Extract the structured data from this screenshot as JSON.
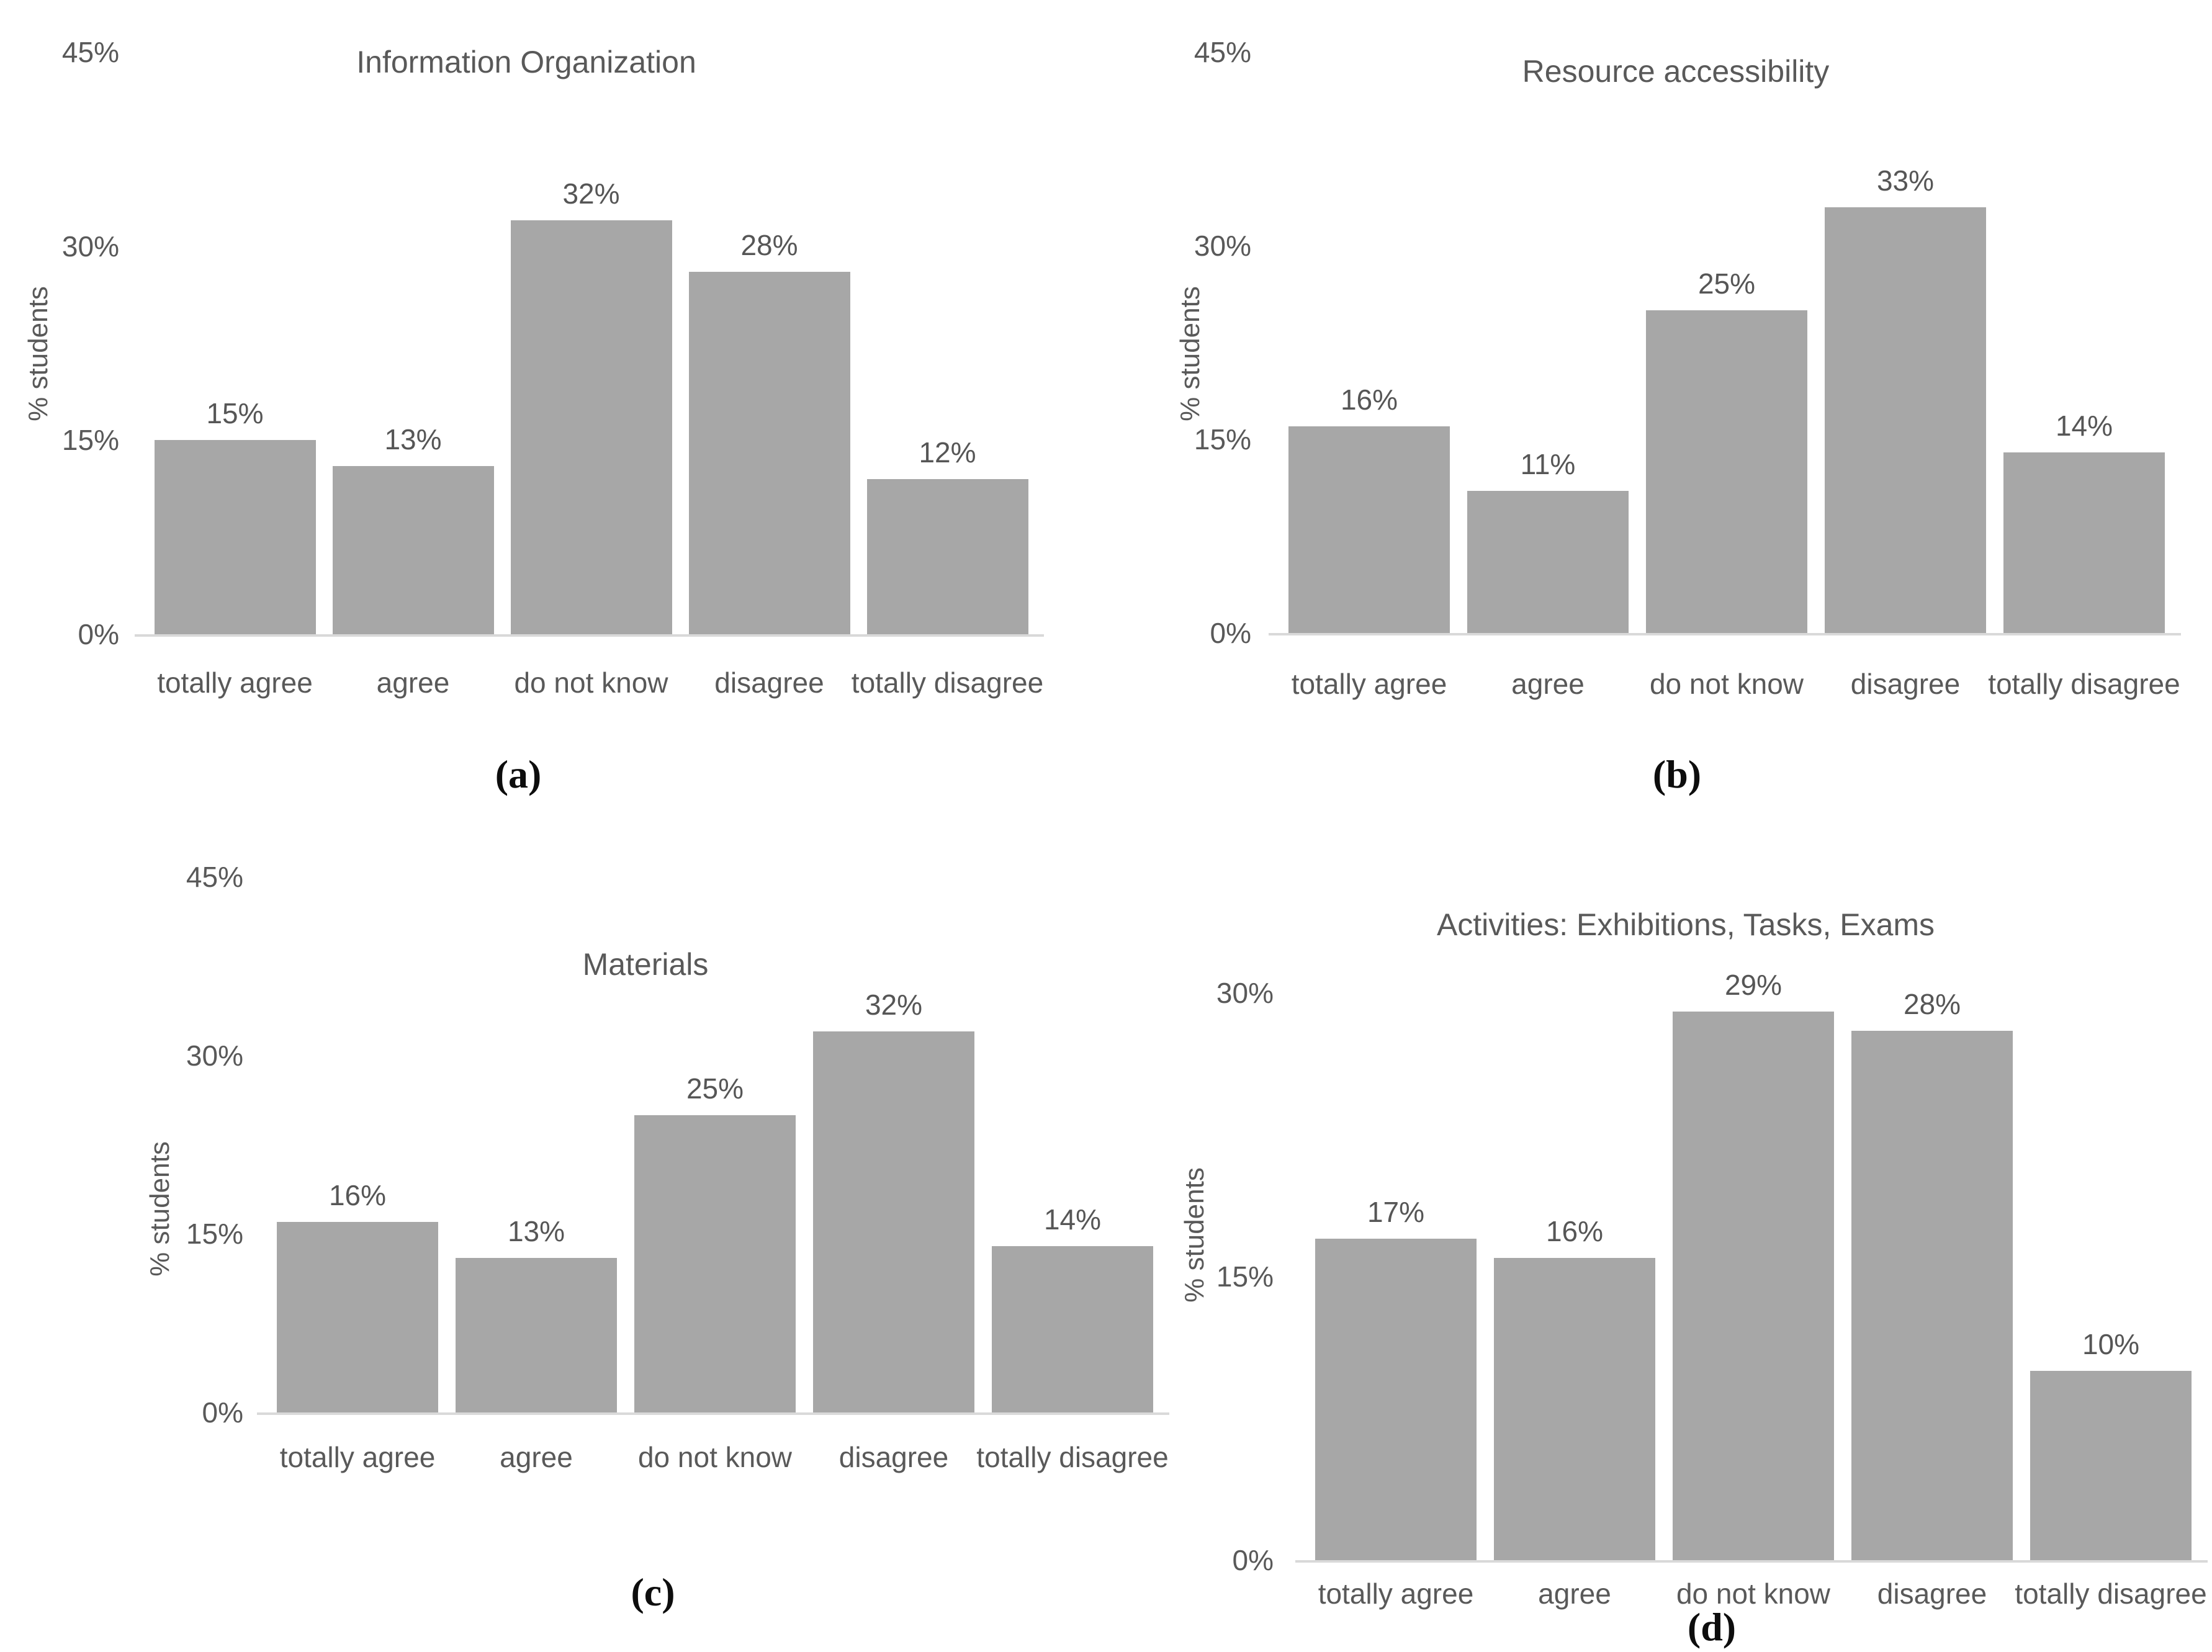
{
  "figure": {
    "background": "#ffffff",
    "bar_color": "#a7a7a7",
    "text_color": "#595959",
    "caption_color": "#0d0d0d",
    "baseline_color": "#d9d9d9"
  },
  "chart_data": [
    {
      "type": "bar",
      "panel": "a",
      "title": "Information Organization",
      "xlabel": "",
      "ylabel": "% students",
      "caption": "(a)",
      "categories": [
        "totally agree",
        "agree",
        "do not know",
        "disagree",
        "totally disagree"
      ],
      "values": [
        15,
        13,
        32,
        28,
        12
      ],
      "value_labels": [
        "15%",
        "13%",
        "32%",
        "28%",
        "12%"
      ],
      "yticks": [
        {
          "value": 45,
          "label": "45%"
        },
        {
          "value": 30,
          "label": "30%"
        },
        {
          "value": 15,
          "label": "15%"
        },
        {
          "value": 0,
          "label": "0%"
        }
      ],
      "ylim": [
        0,
        45
      ],
      "grid": false,
      "legend_position": "none"
    },
    {
      "type": "bar",
      "panel": "b",
      "title": "Resource accessibility",
      "xlabel": "",
      "ylabel": "% students",
      "caption": "(b)",
      "categories": [
        "totally agree",
        "agree",
        "do not know",
        "disagree",
        "totally disagree"
      ],
      "values": [
        16,
        11,
        25,
        33,
        14
      ],
      "value_labels": [
        "16%",
        "11%",
        "25%",
        "33%",
        "14%"
      ],
      "yticks": [
        {
          "value": 45,
          "label": "45%"
        },
        {
          "value": 30,
          "label": "30%"
        },
        {
          "value": 15,
          "label": "15%"
        },
        {
          "value": 0,
          "label": "0%"
        }
      ],
      "ylim": [
        0,
        45
      ],
      "grid": false,
      "legend_position": "none"
    },
    {
      "type": "bar",
      "panel": "c",
      "title": "Materials",
      "xlabel": "",
      "ylabel": "% students",
      "caption": "(c)",
      "categories": [
        "totally agree",
        "agree",
        "do not know",
        "disagree",
        "totally disagree"
      ],
      "values": [
        16,
        13,
        25,
        32,
        14
      ],
      "value_labels": [
        "16%",
        "13%",
        "25%",
        "32%",
        "14%"
      ],
      "yticks": [
        {
          "value": 45,
          "label": "45%"
        },
        {
          "value": 30,
          "label": "30%"
        },
        {
          "value": 15,
          "label": "15%"
        },
        {
          "value": 0,
          "label": "0%"
        }
      ],
      "ylim": [
        0,
        45
      ],
      "grid": false,
      "legend_position": "none"
    },
    {
      "type": "bar",
      "panel": "d",
      "title": "Activities: Exhibitions, Tasks, Exams",
      "xlabel": "",
      "ylabel": "% students",
      "caption": "(d)",
      "categories": [
        "totally agree",
        "agree",
        "do not know",
        "disagree",
        "totally disagree"
      ],
      "values": [
        17,
        16,
        29,
        28,
        10
      ],
      "value_labels": [
        "17%",
        "16%",
        "29%",
        "28%",
        "10%"
      ],
      "yticks": [
        {
          "value": 30,
          "label": "30%"
        },
        {
          "value": 15,
          "label": "15%"
        },
        {
          "value": 0,
          "label": "0%"
        }
      ],
      "ylim": [
        0,
        30
      ],
      "grid": false,
      "legend_position": "none"
    }
  ]
}
